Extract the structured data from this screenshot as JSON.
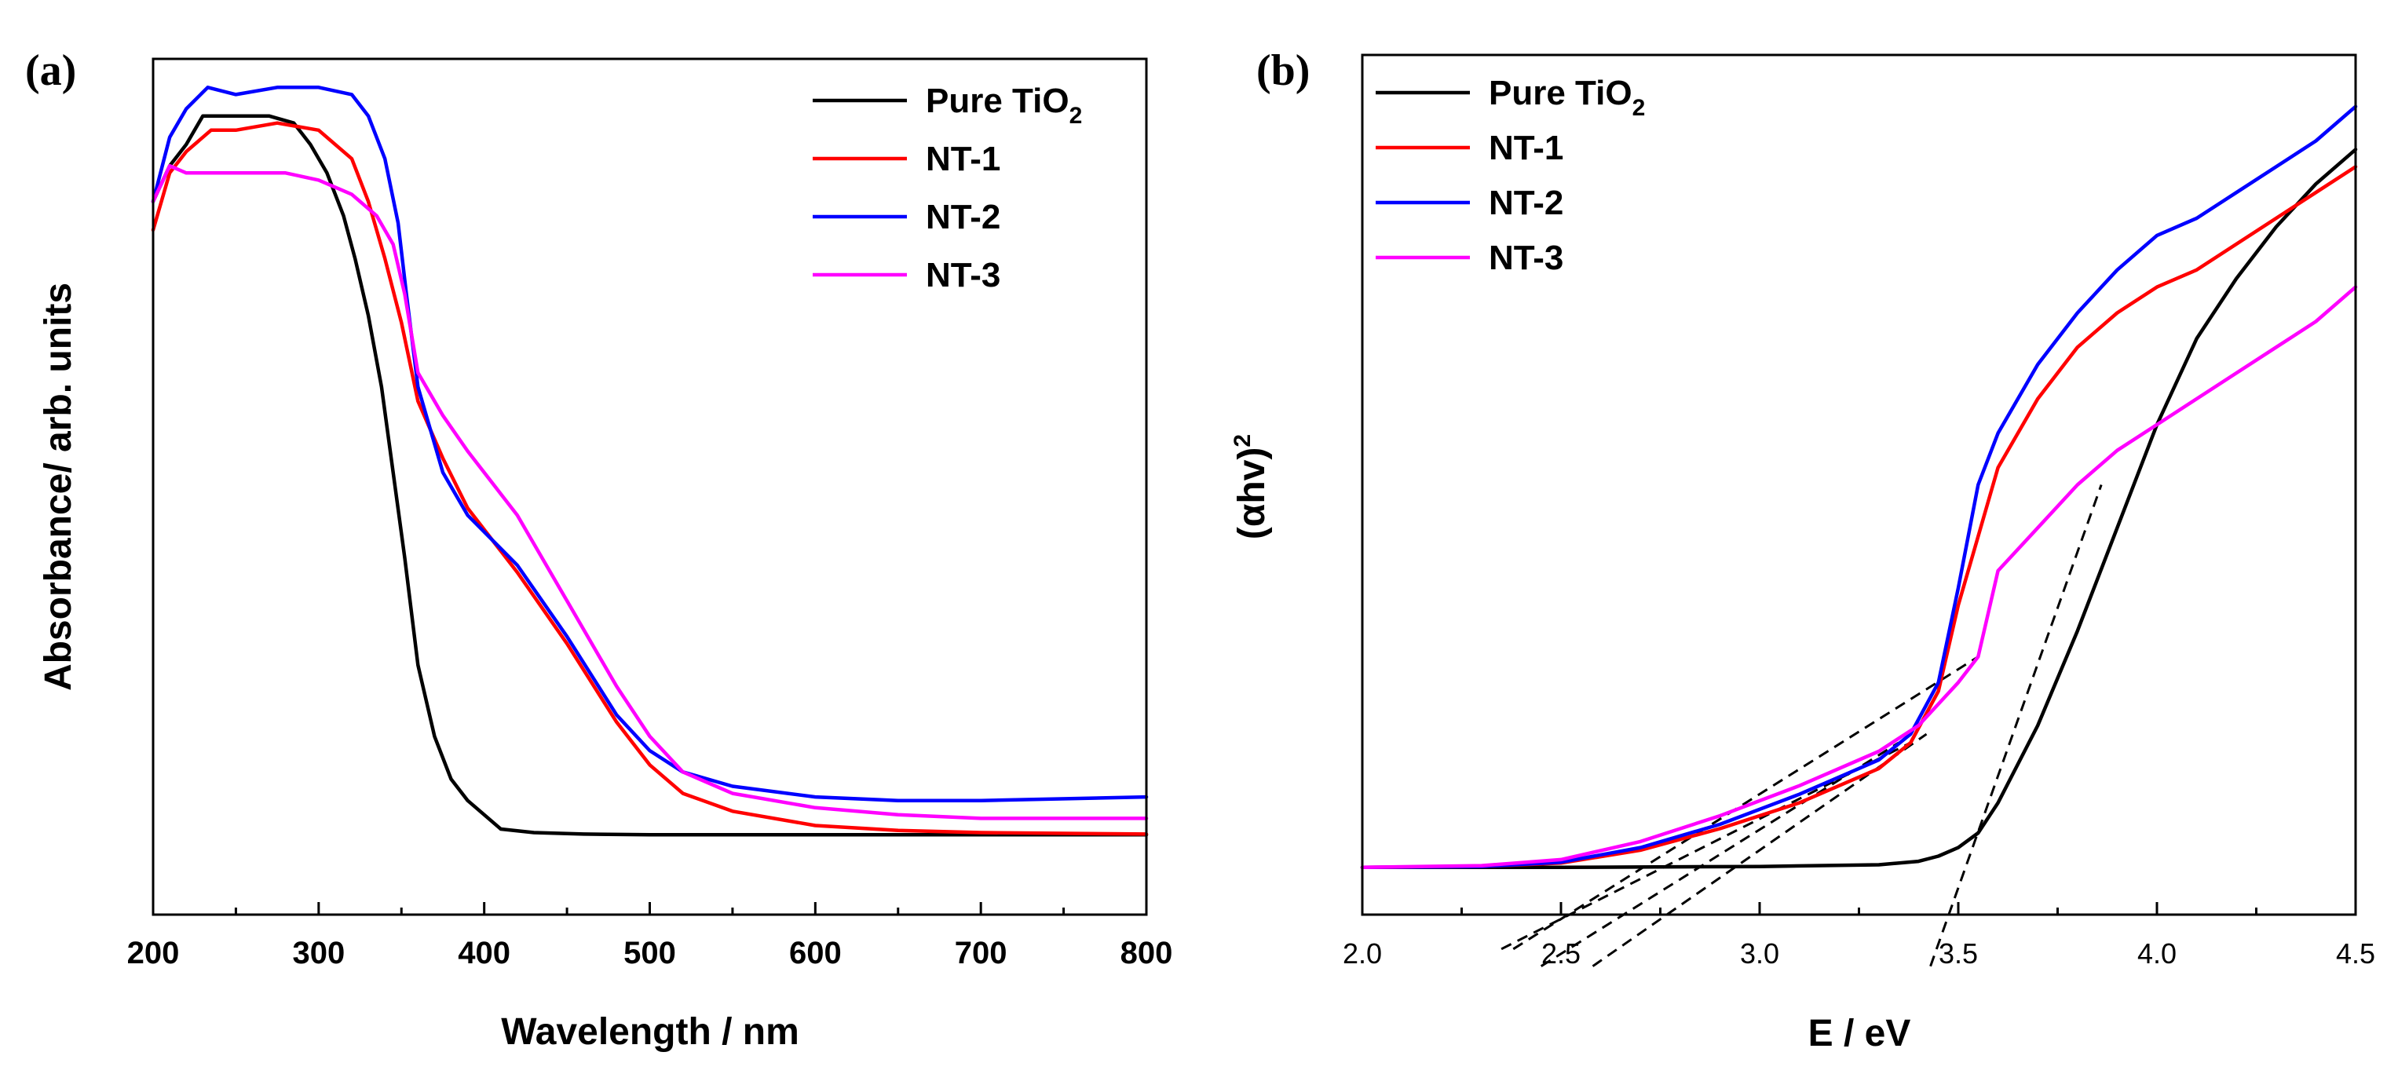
{
  "chart_data": [
    {
      "panel_label": "(a)",
      "type": "line",
      "xlabel": "Wavelength / nm",
      "ylabel": "Absorbance/ arb. units",
      "xlim": [
        200,
        800
      ],
      "ylim": [
        0,
        1.2
      ],
      "xticks": [
        "200",
        "300",
        "400",
        "500",
        "600",
        "700",
        "800"
      ],
      "yticks_shown": false,
      "grid": false,
      "legend_position": "top-right",
      "legend": [
        {
          "main": "Pure TiO",
          "sub": "2",
          "color": "#000000"
        },
        {
          "main": "NT-1",
          "sub": "",
          "color": "#ff0000"
        },
        {
          "main": "NT-2",
          "sub": "",
          "color": "#0000ff"
        },
        {
          "main": "NT-3",
          "sub": "",
          "color": "#ff00ff"
        }
      ],
      "series": [
        {
          "name": "Pure TiO2",
          "color": "#000000",
          "x": [
            200,
            210,
            220,
            230,
            250,
            270,
            285,
            295,
            305,
            315,
            322,
            330,
            338,
            345,
            352,
            360,
            370,
            380,
            390,
            400,
            410,
            430,
            460,
            500,
            600,
            700,
            800
          ],
          "y": [
            1.0,
            1.05,
            1.08,
            1.12,
            1.12,
            1.12,
            1.11,
            1.08,
            1.04,
            0.98,
            0.92,
            0.84,
            0.74,
            0.62,
            0.5,
            0.35,
            0.25,
            0.19,
            0.16,
            0.14,
            0.12,
            0.115,
            0.113,
            0.112,
            0.112,
            0.112,
            0.112
          ]
        },
        {
          "name": "NT-1",
          "color": "#ff0000",
          "x": [
            200,
            210,
            220,
            235,
            250,
            275,
            300,
            320,
            330,
            340,
            350,
            360,
            375,
            390,
            420,
            450,
            480,
            500,
            520,
            550,
            600,
            650,
            700,
            800
          ],
          "y": [
            0.96,
            1.04,
            1.07,
            1.1,
            1.1,
            1.11,
            1.1,
            1.06,
            1.0,
            0.92,
            0.83,
            0.72,
            0.64,
            0.57,
            0.48,
            0.38,
            0.27,
            0.21,
            0.17,
            0.145,
            0.125,
            0.118,
            0.115,
            0.113
          ]
        },
        {
          "name": "NT-2",
          "color": "#0000ff",
          "x": [
            200,
            210,
            220,
            233,
            250,
            275,
            300,
            320,
            330,
            340,
            348,
            353,
            360,
            375,
            390,
            420,
            450,
            480,
            500,
            520,
            550,
            600,
            650,
            700,
            800
          ],
          "y": [
            1.0,
            1.09,
            1.13,
            1.16,
            1.15,
            1.16,
            1.16,
            1.15,
            1.12,
            1.06,
            0.97,
            0.87,
            0.74,
            0.62,
            0.56,
            0.49,
            0.39,
            0.28,
            0.23,
            0.2,
            0.18,
            0.165,
            0.16,
            0.16,
            0.165
          ]
        },
        {
          "name": "NT-3",
          "color": "#ff00ff",
          "x": [
            200,
            210,
            220,
            240,
            260,
            280,
            300,
            320,
            335,
            345,
            352,
            360,
            375,
            390,
            420,
            450,
            480,
            500,
            520,
            550,
            600,
            650,
            700,
            800
          ],
          "y": [
            1.0,
            1.05,
            1.04,
            1.04,
            1.04,
            1.04,
            1.03,
            1.01,
            0.98,
            0.94,
            0.87,
            0.76,
            0.7,
            0.65,
            0.56,
            0.44,
            0.32,
            0.25,
            0.2,
            0.17,
            0.15,
            0.14,
            0.135,
            0.135
          ]
        }
      ]
    },
    {
      "panel_label": "(b)",
      "type": "line",
      "xlabel": "E / eV",
      "ylabel_main": "(αhv)",
      "ylabel_sup": "2",
      "xlim": [
        2.0,
        4.5
      ],
      "ylim": [
        0,
        1.0
      ],
      "xticks": [
        "2.0",
        "2.5",
        "3.0",
        "3.5",
        "4.0",
        "4.5"
      ],
      "yticks_shown": false,
      "grid": false,
      "legend_position": "top-left",
      "legend": [
        {
          "main": "Pure TiO",
          "sub": "2",
          "color": "#000000"
        },
        {
          "main": "NT-1",
          "sub": "",
          "color": "#ff0000"
        },
        {
          "main": "NT-2",
          "sub": "",
          "color": "#0000ff"
        },
        {
          "main": "NT-3",
          "sub": "",
          "color": "#ff00ff"
        }
      ],
      "series": [
        {
          "name": "Pure TiO2",
          "color": "#000000",
          "x": [
            2.0,
            2.5,
            3.0,
            3.3,
            3.4,
            3.45,
            3.5,
            3.55,
            3.6,
            3.7,
            3.8,
            3.9,
            4.0,
            4.1,
            4.2,
            4.3,
            4.4,
            4.5
          ],
          "y": [
            0.055,
            0.055,
            0.056,
            0.058,
            0.062,
            0.068,
            0.078,
            0.095,
            0.13,
            0.22,
            0.33,
            0.45,
            0.57,
            0.67,
            0.74,
            0.8,
            0.85,
            0.89
          ]
        },
        {
          "name": "NT-1",
          "color": "#ff0000",
          "x": [
            2.0,
            2.3,
            2.5,
            2.7,
            2.9,
            3.1,
            3.3,
            3.38,
            3.45,
            3.5,
            3.55,
            3.6,
            3.7,
            3.8,
            3.9,
            4.0,
            4.1,
            4.2,
            4.3,
            4.4,
            4.5
          ],
          "y": [
            0.055,
            0.056,
            0.06,
            0.075,
            0.1,
            0.13,
            0.17,
            0.2,
            0.26,
            0.36,
            0.44,
            0.52,
            0.6,
            0.66,
            0.7,
            0.73,
            0.75,
            0.78,
            0.81,
            0.84,
            0.87
          ]
        },
        {
          "name": "NT-2",
          "color": "#0000ff",
          "x": [
            2.0,
            2.3,
            2.5,
            2.7,
            2.9,
            3.1,
            3.3,
            3.38,
            3.45,
            3.5,
            3.55,
            3.6,
            3.7,
            3.8,
            3.9,
            4.0,
            4.1,
            4.2,
            4.3,
            4.4,
            4.5
          ],
          "y": [
            0.055,
            0.056,
            0.061,
            0.078,
            0.105,
            0.14,
            0.18,
            0.21,
            0.27,
            0.38,
            0.5,
            0.56,
            0.64,
            0.7,
            0.75,
            0.79,
            0.81,
            0.84,
            0.87,
            0.9,
            0.94
          ]
        },
        {
          "name": "NT-3",
          "color": "#ff00ff",
          "x": [
            2.0,
            2.3,
            2.5,
            2.7,
            2.9,
            3.1,
            3.3,
            3.4,
            3.5,
            3.55,
            3.58,
            3.6,
            3.7,
            3.8,
            3.9,
            4.0,
            4.1,
            4.2,
            4.3,
            4.4,
            4.5
          ],
          "y": [
            0.055,
            0.057,
            0.064,
            0.085,
            0.115,
            0.15,
            0.19,
            0.22,
            0.27,
            0.3,
            0.36,
            0.4,
            0.45,
            0.5,
            0.54,
            0.57,
            0.6,
            0.63,
            0.66,
            0.69,
            0.73
          ]
        }
      ],
      "annotations": [
        {
          "kind": "dashed-tangent",
          "x": [
            2.58,
            3.42
          ],
          "y": [
            -0.06,
            0.21
          ]
        },
        {
          "kind": "dashed-tangent",
          "x": [
            2.35,
            3.38
          ],
          "y": [
            -0.04,
            0.2
          ]
        },
        {
          "kind": "dashed-tangent",
          "x": [
            2.45,
            3.35
          ],
          "y": [
            -0.06,
            0.2
          ]
        },
        {
          "kind": "dashed-tangent",
          "x": [
            2.38,
            3.55
          ],
          "y": [
            -0.04,
            0.3
          ]
        },
        {
          "kind": "dashed-tangent",
          "x": [
            3.43,
            3.86
          ],
          "y": [
            -0.06,
            0.5
          ]
        }
      ]
    }
  ]
}
